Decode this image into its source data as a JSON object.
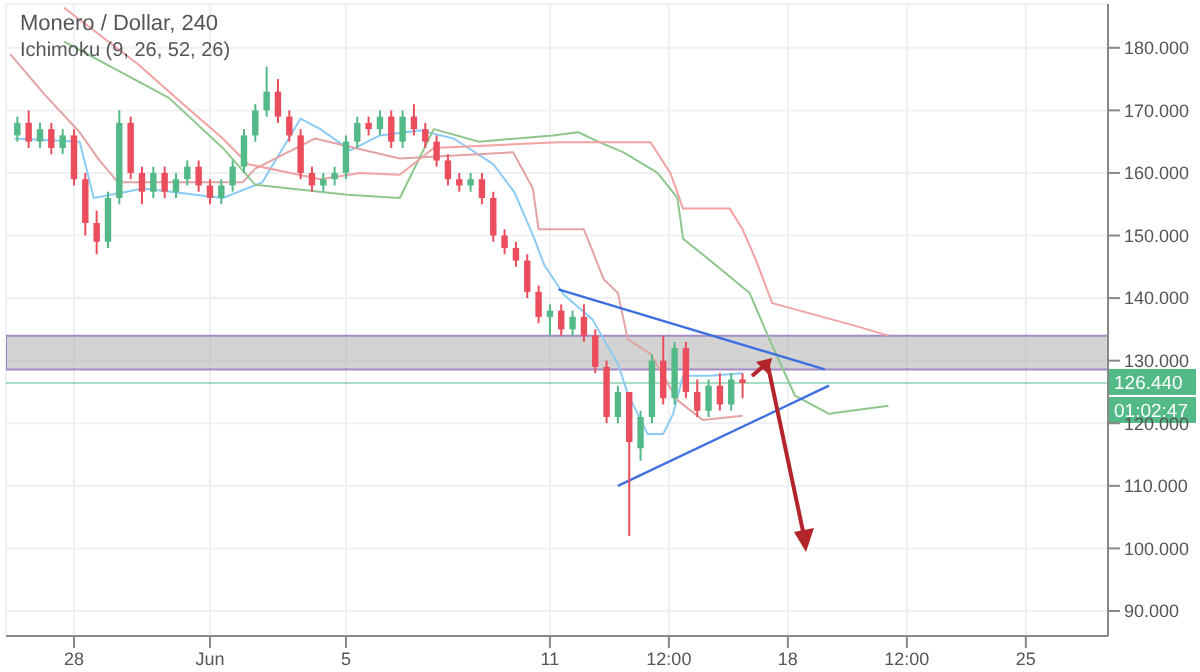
{
  "chart_data": {
    "type": "candlestick",
    "title": "Monero / Dollar, 240",
    "subtitle": "Ichimoku (9, 26, 52, 26)",
    "x": [
      "--05-26T08:00",
      "--05-26T16:00",
      "--05-27T00:00",
      "--05-27T08:00",
      "--05-27T16:00",
      "--05-28T00:00",
      "--05-28T08:00",
      "--05-28T16:00",
      "--05-29T00:00",
      "--05-29T08:00",
      "--05-29T16:00",
      "--05-30T00:00",
      "--05-30T08:00",
      "--05-30T16:00",
      "--05-31T00:00",
      "--05-31T08:00",
      "--05-31T16:00",
      "--06-01T00:00",
      "--06-01T08:00",
      "--06-01T16:00",
      "--06-02T00:00",
      "--06-02T08:00",
      "--06-02T16:00",
      "--06-03T00:00",
      "--06-03T08:00",
      "--06-03T16:00",
      "--06-04T00:00",
      "--06-04T08:00",
      "--06-04T16:00",
      "--06-05T00:00",
      "--06-05T08:00",
      "--06-05T16:00",
      "--06-06T00:00",
      "--06-06T08:00",
      "--06-06T16:00",
      "--06-07T00:00",
      "--06-07T08:00",
      "--06-07T16:00",
      "--06-08T00:00",
      "--06-08T08:00",
      "--06-08T16:00",
      "--06-09T00:00",
      "--06-09T08:00",
      "--06-09T16:00",
      "--06-10T00:00",
      "--06-10T08:00",
      "--06-10T16:00",
      "--06-11T00:00",
      "--06-11T08:00",
      "--06-11T16:00",
      "--06-12T00:00",
      "--06-12T08:00",
      "--06-12T16:00",
      "--06-13T00:00",
      "--06-13T08:00",
      "--06-13T16:00",
      "--06-14T00:00",
      "--06-14T08:00",
      "--06-14T16:00",
      "--06-15T00:00",
      "--06-15T08:00",
      "--06-15T16:00",
      "--06-16T00:00",
      "--06-16T08:00",
      "--06-16T16:00"
    ],
    "ohlc": [
      [
        166,
        169,
        165,
        168
      ],
      [
        168,
        170,
        164,
        165
      ],
      [
        165,
        168,
        164,
        167
      ],
      [
        167,
        168,
        163,
        164
      ],
      [
        164,
        167,
        163,
        166
      ],
      [
        166,
        167,
        158,
        159
      ],
      [
        159,
        160,
        150,
        152
      ],
      [
        152,
        154,
        147,
        149
      ],
      [
        149,
        157,
        148,
        156
      ],
      [
        156,
        170,
        155,
        168
      ],
      [
        168,
        169,
        159,
        160
      ],
      [
        160,
        161,
        155,
        157
      ],
      [
        157,
        161,
        156,
        160
      ],
      [
        160,
        161,
        156,
        157
      ],
      [
        157,
        160,
        156,
        159
      ],
      [
        159,
        162,
        158,
        161
      ],
      [
        161,
        162,
        157,
        158
      ],
      [
        158,
        159,
        155,
        156
      ],
      [
        156,
        159,
        155,
        158
      ],
      [
        158,
        162,
        157,
        161
      ],
      [
        161,
        167,
        160,
        166
      ],
      [
        166,
        171,
        165,
        170
      ],
      [
        170,
        177,
        169,
        173
      ],
      [
        173,
        175,
        168,
        169
      ],
      [
        169,
        170,
        165,
        166
      ],
      [
        166,
        167,
        159,
        160
      ],
      [
        160,
        161,
        157,
        158
      ],
      [
        158,
        160,
        157,
        159
      ],
      [
        159,
        161,
        158,
        160
      ],
      [
        160,
        166,
        159,
        165
      ],
      [
        165,
        169,
        164,
        168
      ],
      [
        168,
        169,
        166,
        167
      ],
      [
        167,
        170,
        166,
        169
      ],
      [
        169,
        170,
        164,
        165
      ],
      [
        165,
        170,
        164,
        169
      ],
      [
        169,
        171,
        166,
        167
      ],
      [
        167,
        168,
        164,
        165
      ],
      [
        165,
        166,
        161,
        162
      ],
      [
        162,
        163,
        158,
        159
      ],
      [
        159,
        160,
        157,
        158
      ],
      [
        158,
        160,
        157,
        159
      ],
      [
        159,
        160,
        155,
        156
      ],
      [
        156,
        157,
        149,
        150
      ],
      [
        150,
        151,
        147,
        148
      ],
      [
        148,
        149,
        145,
        146
      ],
      [
        146,
        147,
        140,
        141
      ],
      [
        141,
        142,
        136,
        137
      ],
      [
        137,
        139,
        134,
        138
      ],
      [
        138,
        139,
        134,
        135
      ],
      [
        135,
        138,
        134,
        137
      ],
      [
        137,
        139,
        133,
        134
      ],
      [
        134,
        135,
        128,
        129
      ],
      [
        129,
        130,
        120,
        121
      ],
      [
        121,
        126,
        120,
        125
      ],
      [
        125,
        125,
        102,
        117
      ],
      [
        116,
        122,
        114,
        121
      ],
      [
        121,
        131,
        120,
        130
      ],
      [
        130,
        134,
        123,
        124
      ],
      [
        124,
        133,
        123,
        132
      ],
      [
        132,
        133,
        124,
        125
      ],
      [
        125,
        127,
        121,
        122
      ],
      [
        122,
        127,
        121,
        126
      ],
      [
        126,
        128,
        122,
        123
      ],
      [
        123,
        128,
        122,
        127
      ],
      [
        127,
        128,
        124,
        126.44
      ]
    ],
    "series": [
      {
        "type": "line",
        "color": "#8ccbf5",
        "x": [
          "--05-26T06:00",
          "--05-28T04:00",
          "--05-28T14:00",
          "--05-30T01:00",
          "--06-01T09:00",
          "--06-02T13:00",
          "--06-03T16:00",
          "--06-04T06:00",
          "--06-05T03:00",
          "--06-06T00:00",
          "--06-07T04:00",
          "--06-08T04:00",
          "--06-09T08:00",
          "--06-09T23:00",
          "--06-10T13:00",
          "--06-10T20:00",
          "--06-11T10:00",
          "--06-12T06:00",
          "--06-13T00:00",
          "--06-13T07:00",
          "--06-13T21:00",
          "--06-14T08:00",
          "--06-14T15:00",
          "--06-14T22:00",
          "--06-15T17:00",
          "--06-16T16:00"
        ],
        "values": [
          165.5,
          165,
          156,
          157.5,
          156,
          158.5,
          168.7,
          167,
          163.6,
          166,
          166.8,
          165.5,
          161.4,
          156.9,
          149.5,
          145.3,
          140.5,
          136.6,
          129.5,
          124.7,
          118.3,
          118.3,
          121.5,
          127.6,
          127.6,
          128
        ]
      },
      {
        "type": "line",
        "color": "#e3a3a3",
        "x": [
          "--05-26T03:00",
          "--05-27T03:00",
          "--05-28T04:00",
          "--05-28T17:00",
          "--05-29T07:00",
          "--06-01T23:00",
          "--06-02T08:00",
          "--06-04T02:00",
          "--06-06T14:00",
          "--06-09T22:00",
          "--06-10T12:00",
          "--06-10T16:00",
          "--06-12T00:00",
          "--06-12T14:00",
          "--06-13T00:00",
          "--06-13T07:00",
          "--06-13T23:00",
          "--06-14T18:00",
          "--06-15T12:00",
          "--06-16T16:00"
        ],
        "values": [
          179,
          172.6,
          166.5,
          162.3,
          158.5,
          158.5,
          160.7,
          165.5,
          162.3,
          163.3,
          157.5,
          151,
          151,
          143,
          140.8,
          133.4,
          131.1,
          123.7,
          120.5,
          121.2
        ]
      },
      {
        "type": "line",
        "color": "#8fc68e",
        "x": [
          "--05-27T17:00",
          "--05-30T19:00",
          "--06-01T09:00",
          "--06-02T08:00",
          "--06-05T01:00",
          "--06-06T14:00",
          "--06-07T14:00",
          "--06-08T22:00",
          "--06-11T02:00",
          "--06-11T20:00",
          "--06-12T10:00",
          "--06-13T04:00",
          "--06-14T04:00",
          "--06-14T18:00",
          "--06-14T22:00",
          "--06-15T21:00",
          "--06-16T21:00",
          "--06-17T11:00",
          "--06-18T05:00",
          "--06-19T05:00",
          "--06-20T23:00"
        ],
        "values": [
          181,
          172,
          164,
          158.1,
          156.5,
          156,
          167,
          165,
          166,
          166.5,
          165,
          163.3,
          160,
          156,
          149.5,
          145.3,
          140.8,
          133.4,
          124.4,
          121.5,
          122.8
        ]
      },
      {
        "type": "line",
        "color": "#f2a2a2",
        "x": [
          "--05-27T17:00",
          "--05-29T21:00",
          "--05-31T05:00",
          "--06-01T09:00",
          "--06-02T03:00",
          "--06-04T06:00",
          "--06-05T10:00",
          "--06-06T14:00",
          "--06-07T14:00",
          "--06-11T06:00",
          "--06-13T23:00",
          "--06-14T13:00",
          "--06-14T22:00",
          "--06-16T07:00",
          "--06-16T16:00",
          "--06-17T01:00",
          "--06-17T13:00",
          "--06-19T23:00",
          "--06-20T23:00"
        ],
        "values": [
          186.4,
          177.4,
          171,
          165.5,
          161.4,
          159,
          160,
          159.7,
          164,
          164.9,
          164.9,
          160,
          154.3,
          154.3,
          151,
          146.3,
          139.2,
          135.6,
          134
        ]
      },
      {
        "type": "line",
        "color": "#3d6fe0",
        "x": [
          "--06-11T06:00",
          "--06-19T02:00"
        ],
        "values": [
          141.4,
          128.6
        ]
      },
      {
        "type": "line",
        "color": "#3d6fe0",
        "x": [
          "--06-13T00:00",
          "--06-19T05:00"
        ],
        "values": [
          110,
          126
        ]
      }
    ],
    "xlim": [
      "--05-26T00:00",
      "--06-27T10:00"
    ],
    "xticks": [
      {
        "value": "--05-28",
        "label": "28"
      },
      {
        "value": "--06-01",
        "label": "Jun"
      },
      {
        "value": "--06-05",
        "label": "5"
      },
      {
        "value": "--06-11",
        "label": "11"
      },
      {
        "value": "--06-14T12:00",
        "label": "12:00"
      },
      {
        "value": "--06-18",
        "label": "18"
      },
      {
        "value": "--06-21T12:00",
        "label": "12:00"
      },
      {
        "value": "--06-25",
        "label": "25"
      }
    ],
    "ylim": [
      86,
      187
    ],
    "yticks": [
      {
        "value": 90,
        "label": "90.000"
      },
      {
        "value": 100,
        "label": "100.000"
      },
      {
        "value": 110,
        "label": "110.000"
      },
      {
        "value": 120,
        "label": "120.000"
      },
      {
        "value": 130,
        "label": "130.000"
      },
      {
        "value": 140,
        "label": "140.000"
      },
      {
        "value": 150,
        "label": "150.000"
      },
      {
        "value": 160,
        "label": "160.000"
      },
      {
        "value": 170,
        "label": "170.000"
      },
      {
        "value": 180,
        "label": "180.000"
      }
    ],
    "ref_lines": [
      {
        "axis": "y",
        "value": 126.44,
        "label": "126.440",
        "color": "#53b987"
      }
    ],
    "bands": [
      {
        "axis": "y",
        "from": 128.6,
        "to": 134,
        "color": "#9e9e9e"
      }
    ],
    "annotations": [
      "01:02:47"
    ],
    "grid": true
  }
}
